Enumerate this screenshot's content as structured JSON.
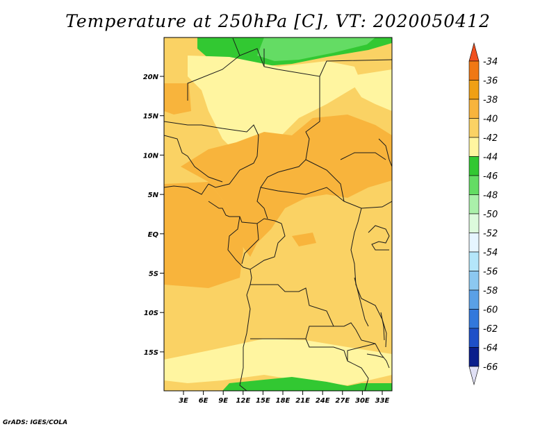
{
  "title": "Temperature at 250hPa [C], VT: 2020050412",
  "credit": "GrADS: IGES/COLA",
  "lat_labels": [
    "20N",
    "15N",
    "10N",
    "5N",
    "EQ",
    "5S",
    "10S",
    "15S"
  ],
  "lon_labels": [
    "3E",
    "6E",
    "9E",
    "12E",
    "15E",
    "18E",
    "21E",
    "24E",
    "27E",
    "30E",
    "33E"
  ],
  "colorbar": {
    "labels": [
      "-34",
      "-36",
      "-38",
      "-40",
      "-42",
      "-44",
      "-46",
      "-48",
      "-50",
      "-52",
      "-54",
      "-56",
      "-58",
      "-60",
      "-62",
      "-64",
      "-66"
    ],
    "colors": [
      "#f0501e",
      "#f07814",
      "#f0a014",
      "#f8b43c",
      "#fad264",
      "#fff5a0",
      "#32c832",
      "#64dc64",
      "#aaf0aa",
      "#dcfadc",
      "#e6f5ff",
      "#b4e6fa",
      "#8cc8f0",
      "#5aa0e6",
      "#3278dc",
      "#1e50c8",
      "#0a1e8c",
      "#000064",
      "#e0e0f5"
    ]
  },
  "map_colors": {
    "t40": "#fad264",
    "t38": "#f8b43c",
    "t42": "#fff5a0",
    "t44": "#32c832",
    "t46": "#64dc64"
  }
}
